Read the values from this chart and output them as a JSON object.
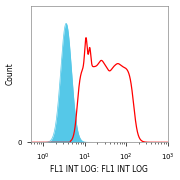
{
  "title": "",
  "xlabel": "FL1 INT LOG: FL1 INT LOG",
  "ylabel": "Count",
  "xlim_log": [
    0.5,
    1000
  ],
  "ylim": [
    0,
    1.15
  ],
  "background_color": "#ffffff",
  "plot_bg_color": "#ffffff",
  "blue_color": "#55c8e8",
  "red_color": "#ff0000",
  "xlabel_fontsize": 5.5,
  "ylabel_fontsize": 5.5,
  "tick_fontsize": 5.0
}
